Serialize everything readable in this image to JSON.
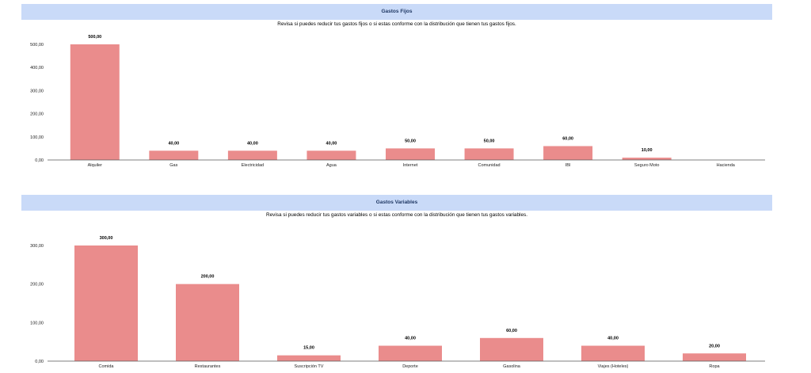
{
  "chart_data": [
    {
      "type": "bar",
      "title": "Gastos Fijos",
      "subtitle": "Revisa si puedes reducir tus gastos fijos o si estas conforme con la distribución que tienen tus gastos fijos.",
      "categories": [
        "Alquiler",
        "Gas",
        "Electricidad",
        "Agua",
        "Internet",
        "Comunidad",
        "IBI",
        "Seguro Moto",
        "Hacienda"
      ],
      "values": [
        500,
        40,
        40,
        40,
        50,
        50,
        60,
        10,
        0
      ],
      "data_labels": [
        "500,00",
        "40,00",
        "40,00",
        "40,00",
        "50,00",
        "50,00",
        "60,00",
        "10,00",
        ""
      ],
      "yticks": [
        "0,00",
        "100,00",
        "200,00",
        "300,00",
        "400,00",
        "500,00"
      ],
      "ytick_values": [
        0,
        100,
        200,
        300,
        400,
        500
      ],
      "ylim": [
        0,
        500
      ],
      "grid": false,
      "bar_color": "#ea8c8c"
    },
    {
      "type": "bar",
      "title": "Gastos Variables",
      "subtitle": "Revisa si puedes reducir tus gastos variables o si estas conforme con la distribución que tienen tus gastos variables.",
      "categories": [
        "Comida",
        "Restaurantes",
        "Suscripción TV",
        "Deporte",
        "Gasolina",
        "Viajes (Hoteles)",
        "Ropa"
      ],
      "values": [
        300,
        200,
        15,
        40,
        60,
        40,
        20
      ],
      "data_labels": [
        "300,00",
        "200,00",
        "15,00",
        "40,00",
        "60,00",
        "40,00",
        "20,00"
      ],
      "yticks": [
        "0,00",
        "100,00",
        "200,00",
        "300,00"
      ],
      "ytick_values": [
        0,
        100,
        200,
        300
      ],
      "ylim": [
        0,
        300
      ],
      "grid": false,
      "bar_color": "#ea8c8c"
    }
  ]
}
